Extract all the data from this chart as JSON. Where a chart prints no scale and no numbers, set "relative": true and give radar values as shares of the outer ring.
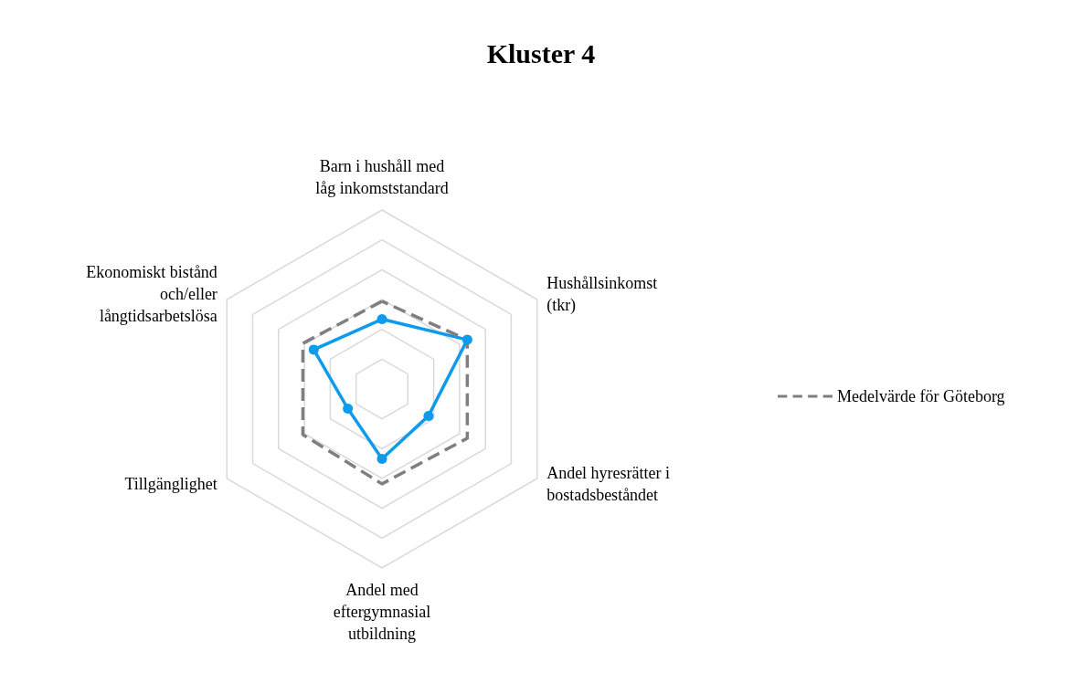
{
  "chart_data": {
    "type": "radar",
    "title": "Kluster 4",
    "relative": true,
    "legend": "right",
    "categories": [
      "Barn i hushåll med låg inkomststandard",
      "Hushållsinkomst (tkr)",
      "Andel hyresrätter i bostadsbeståndet",
      "Andel med eftergymnasial utbildning",
      "Tillgänglighet",
      "Ekonomiskt bistånd och/eller långtidsarbetslösa"
    ],
    "series": [
      {
        "color": "#0f9bec",
        "marker": "circle",
        "line_style": "solid",
        "values": [
          0.39,
          0.55,
          0.3,
          0.39,
          0.22,
          0.44
        ]
      },
      {
        "name": "Medelvärde för Göteborg",
        "color": "#7f7f7f",
        "marker": "none",
        "line_style": "dashed",
        "values": [
          0.49,
          0.55,
          0.55,
          0.53,
          0.51,
          0.51
        ]
      }
    ]
  }
}
